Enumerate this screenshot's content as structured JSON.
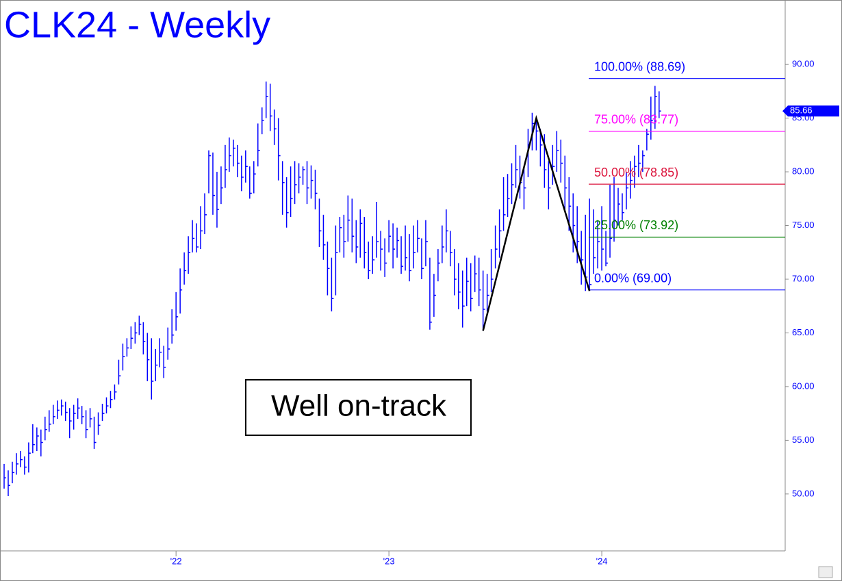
{
  "chart_data": {
    "type": "ohlc",
    "title": "CLK24 - Weekly",
    "color": "#0000ff",
    "categories": [
      null,
      null,
      null,
      null,
      null,
      null,
      null,
      null,
      null,
      null,
      null,
      null,
      null,
      null,
      null,
      null,
      null,
      null,
      null,
      null,
      null,
      null,
      null,
      null,
      null,
      null,
      null,
      null,
      null,
      null,
      null,
      null,
      null,
      null,
      null,
      null,
      null,
      null,
      null,
      null,
      null,
      null,
      "'22",
      null,
      null,
      null,
      null,
      null,
      null,
      null,
      null,
      null,
      null,
      null,
      null,
      null,
      null,
      null,
      null,
      null,
      null,
      null,
      null,
      null,
      null,
      null,
      null,
      null,
      null,
      null,
      null,
      null,
      null,
      null,
      null,
      null,
      null,
      null,
      null,
      null,
      null,
      null,
      null,
      null,
      null,
      null,
      null,
      null,
      null,
      null,
      null,
      null,
      null,
      null,
      "'23",
      null,
      null,
      null,
      null,
      null,
      null,
      null,
      null,
      null,
      null,
      null,
      null,
      null,
      null,
      null,
      null,
      null,
      null,
      null,
      null,
      null,
      null,
      null,
      null,
      null,
      null,
      null,
      null,
      null,
      null,
      null,
      null,
      null,
      null,
      null,
      null,
      null,
      null,
      null,
      null,
      null,
      null,
      null,
      null,
      null,
      null,
      null,
      null,
      null,
      null,
      null,
      "'24",
      null,
      null,
      null,
      null,
      null,
      null,
      null,
      null,
      null,
      null,
      null,
      null,
      null,
      null
    ],
    "high": [
      52.8,
      52.2,
      53.0,
      53.8,
      54.0,
      53.5,
      54.8,
      56.5,
      56.2,
      56.0,
      57.2,
      57.8,
      58.3,
      58.7,
      58.8,
      58.6,
      58.0,
      58.3,
      58.9,
      58.2,
      57.8,
      58.0,
      57.2,
      57.6,
      58.4,
      59.0,
      59.6,
      60.2,
      62.5,
      64.0,
      64.5,
      65.6,
      66.0,
      66.6,
      66.0,
      65.0,
      64.5,
      63.5,
      64.5,
      63.8,
      65.5,
      67.2,
      68.8,
      71.0,
      72.5,
      74.0,
      75.5,
      75.2,
      76.8,
      78.0,
      82.0,
      81.8,
      80.0,
      80.5,
      82.5,
      83.2,
      83.0,
      82.5,
      81.5,
      82.0,
      80.5,
      81.0,
      84.5,
      86.0,
      88.4,
      88.2,
      85.8,
      85.0,
      81.0,
      79.5,
      80.5,
      81.0,
      80.8,
      80.5,
      81.0,
      80.6,
      80.2,
      77.5,
      76.0,
      73.5,
      72.0,
      75.0,
      75.8,
      76.0,
      77.8,
      77.5,
      75.5,
      76.5,
      75.8,
      73.5,
      74.0,
      77.2,
      74.5,
      73.8,
      75.5,
      75.2,
      74.8,
      74.0,
      75.0,
      74.2,
      75.0,
      75.5,
      73.8,
      75.5,
      72.0,
      70.5,
      72.8,
      75.0,
      76.5,
      74.5,
      72.8,
      71.5,
      70.8,
      72.0,
      71.5,
      72.2,
      72.0,
      70.8,
      70.5,
      72.8,
      75.0,
      76.5,
      79.5,
      79.8,
      80.8,
      82.5,
      81.5,
      80.5,
      84.0,
      85.5,
      85.0,
      84.0,
      83.5,
      81.0,
      82.5,
      83.8,
      83.0,
      81.5,
      79.5,
      78.0,
      76.8,
      74.5,
      76.0,
      77.5,
      76.5,
      75.5,
      76.8,
      74.5,
      78.8,
      79.5,
      78.5,
      78.0,
      80.0,
      81.0,
      81.5,
      82.5,
      82.0,
      84.0,
      87.0,
      88.0,
      87.5
    ],
    "low": [
      50.5,
      49.8,
      51.0,
      51.8,
      52.5,
      51.8,
      52.0,
      53.8,
      54.0,
      53.5,
      55.0,
      55.8,
      56.5,
      57.0,
      57.3,
      56.8,
      55.2,
      56.0,
      57.0,
      56.5,
      55.2,
      56.2,
      54.2,
      55.5,
      56.8,
      57.5,
      58.0,
      58.8,
      60.2,
      61.5,
      62.8,
      63.5,
      64.0,
      64.8,
      63.0,
      60.5,
      58.8,
      60.5,
      61.8,
      60.8,
      62.5,
      64.0,
      65.2,
      66.8,
      69.5,
      70.5,
      72.5,
      72.5,
      72.8,
      74.2,
      78.0,
      76.0,
      74.8,
      77.0,
      78.5,
      80.0,
      80.5,
      79.5,
      78.2,
      79.0,
      77.5,
      78.0,
      80.5,
      83.5,
      85.0,
      83.8,
      82.5,
      79.2,
      76.0,
      74.8,
      75.8,
      77.0,
      78.0,
      78.8,
      77.0,
      77.5,
      76.5,
      73.0,
      71.8,
      68.5,
      67.0,
      68.5,
      72.5,
      72.0,
      73.5,
      72.5,
      71.5,
      72.0,
      71.0,
      70.0,
      70.5,
      72.0,
      70.8,
      70.2,
      72.5,
      71.0,
      72.0,
      70.5,
      70.8,
      69.8,
      71.0,
      72.5,
      70.0,
      71.2,
      65.3,
      66.5,
      69.8,
      71.5,
      72.5,
      71.2,
      68.5,
      67.2,
      65.5,
      67.5,
      67.0,
      68.8,
      67.5,
      65.2,
      67.0,
      68.8,
      71.0,
      72.0,
      74.5,
      75.8,
      77.0,
      78.5,
      77.5,
      76.5,
      79.5,
      82.0,
      82.0,
      80.5,
      78.5,
      76.5,
      78.8,
      80.0,
      79.0,
      76.5,
      74.5,
      72.5,
      71.5,
      69.5,
      68.9,
      69.0,
      70.5,
      71.0,
      70.8,
      71.2,
      72.0,
      73.5,
      75.0,
      75.5,
      76.5,
      77.5,
      78.5,
      79.5,
      80.0,
      82.0,
      83.0,
      84.0,
      85.0
    ],
    "close": [
      51.5,
      50.8,
      52.0,
      52.8,
      53.2,
      52.5,
      53.8,
      54.6,
      55.4,
      54.8,
      56.0,
      56.5,
      57.2,
      57.8,
      58.2,
      57.6,
      56.8,
      57.5,
      58.0,
      57.2,
      56.0,
      57.0,
      54.8,
      56.4,
      57.5,
      58.2,
      58.8,
      59.5,
      61.0,
      62.8,
      63.6,
      64.5,
      65.0,
      65.8,
      64.2,
      62.5,
      60.5,
      62.0,
      63.2,
      61.8,
      63.5,
      64.8,
      66.5,
      69.0,
      70.8,
      72.5,
      73.8,
      73.0,
      74.5,
      76.0,
      81.5,
      77.8,
      76.5,
      78.5,
      80.2,
      81.5,
      82.2,
      80.8,
      79.5,
      80.5,
      78.0,
      79.8,
      82.0,
      84.8,
      87.0,
      85.2,
      84.0,
      81.5,
      79.0,
      76.2,
      77.5,
      78.8,
      79.5,
      80.2,
      78.5,
      79.2,
      78.0,
      74.5,
      73.2,
      71.0,
      68.2,
      72.5,
      74.8,
      73.5,
      75.5,
      74.0,
      73.0,
      75.2,
      72.5,
      70.8,
      71.8,
      73.5,
      72.8,
      71.5,
      74.0,
      72.8,
      73.6,
      71.2,
      72.0,
      70.8,
      72.5,
      73.8,
      71.0,
      73.5,
      66.0,
      68.5,
      71.5,
      73.0,
      74.5,
      72.5,
      70.0,
      68.8,
      67.5,
      69.8,
      68.2,
      70.5,
      69.0,
      67.2,
      68.5,
      70.0,
      72.8,
      74.5,
      76.0,
      77.5,
      78.8,
      80.2,
      79.0,
      78.5,
      82.5,
      84.5,
      83.8,
      82.5,
      80.2,
      78.5,
      80.5,
      82.0,
      80.8,
      78.5,
      76.8,
      75.0,
      73.5,
      71.8,
      70.2,
      69.5,
      72.0,
      73.5,
      72.8,
      71.5,
      73.8,
      75.5,
      77.0,
      76.2,
      78.5,
      79.2,
      80.5,
      80.8,
      81.5,
      83.5,
      84.8,
      87.0,
      85.66
    ],
    "last_price": {
      "value": 85.66,
      "label": "85.66"
    },
    "ylim": [
      44.7,
      96.0
    ],
    "yticks": [
      {
        "value": 50,
        "label": "50.00"
      },
      {
        "value": 55,
        "label": "55.00"
      },
      {
        "value": 60,
        "label": "60.00"
      },
      {
        "value": 65,
        "label": "65.00"
      },
      {
        "value": 70,
        "label": "70.00"
      },
      {
        "value": 75,
        "label": "75.00"
      },
      {
        "value": 80,
        "label": "80.00"
      },
      {
        "value": 85,
        "label": "85.00"
      },
      {
        "value": 90,
        "label": "90.00"
      }
    ],
    "fib_levels": [
      {
        "label": "100.00% (88.69)",
        "value": 88.69,
        "color": "#0000ff"
      },
      {
        "label": "75.00% (83.77)",
        "value": 83.77,
        "color": "#ff00ff"
      },
      {
        "label": "50.00% (78.85)",
        "value": 78.85,
        "color": "#dc143c"
      },
      {
        "label": "25.00% (73.92)",
        "value": 73.92,
        "color": "#008000"
      },
      {
        "label": "0.00% (69.00)",
        "value": 69.0,
        "color": "#0000ff"
      }
    ],
    "pattern_points": [
      [
        117,
        65.2
      ],
      [
        130,
        85.0
      ],
      [
        143,
        68.9
      ]
    ],
    "annotation": "Well on-track"
  }
}
